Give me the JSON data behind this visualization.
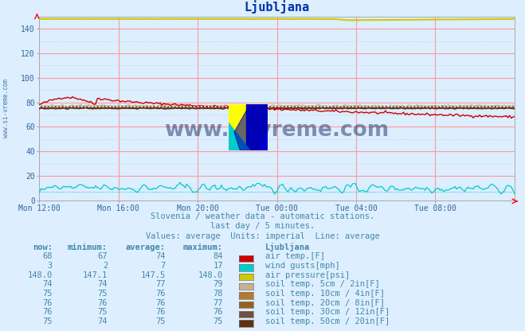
{
  "title": "Ljubljana",
  "subtitle1": "Slovenia / weather data - automatic stations.",
  "subtitle2": "last day / 5 minutes.",
  "subtitle3": "Values: average  Units: imperial  Line: average",
  "bg_color": "#ddeeff",
  "plot_bg_color": "#ddeeff",
  "x_labels": [
    "Mon 12:00",
    "Mon 16:00",
    "Mon 20:00",
    "Tue 00:00",
    "Tue 04:00",
    "Tue 08:00"
  ],
  "x_ticks_norm": [
    0.0,
    0.1667,
    0.3333,
    0.5,
    0.6667,
    0.8333
  ],
  "ylim": [
    0,
    150
  ],
  "yticks": [
    0,
    20,
    40,
    60,
    80,
    100,
    120,
    140
  ],
  "n_points": 288,
  "series_colors": {
    "air_temp": "#cc0000",
    "wind_gusts": "#00cccc",
    "air_pressure": "#cccc00",
    "soil5": "#c8b090",
    "soil10": "#b87830",
    "soil20": "#986020",
    "soil30": "#705040",
    "soil50": "#603010"
  },
  "table_color": "#4488aa",
  "watermark": "www.si-vreme.com",
  "watermark_color": "#1a3060",
  "table_rows": [
    {
      "now": "68",
      "min": "67",
      "avg": "74",
      "max": "84",
      "color": "#cc0000",
      "label": "air temp.[F]"
    },
    {
      "now": "3",
      "min": "2",
      "avg": "7",
      "max": "17",
      "color": "#00cccc",
      "label": "wind gusts[mph]"
    },
    {
      "now": "148.0",
      "min": "147.1",
      "avg": "147.5",
      "max": "148.0",
      "color": "#cccc00",
      "label": "air pressure[psi]"
    },
    {
      "now": "74",
      "min": "74",
      "avg": "77",
      "max": "79",
      "color": "#c8b090",
      "label": "soil temp. 5cm / 2in[F]"
    },
    {
      "now": "75",
      "min": "75",
      "avg": "76",
      "max": "78",
      "color": "#b87830",
      "label": "soil temp. 10cm / 4in[F]"
    },
    {
      "now": "76",
      "min": "76",
      "avg": "76",
      "max": "77",
      "color": "#986020",
      "label": "soil temp. 20cm / 8in[F]"
    },
    {
      "now": "76",
      "min": "75",
      "avg": "76",
      "max": "76",
      "color": "#705040",
      "label": "soil temp. 30cm / 12in[F]"
    },
    {
      "now": "75",
      "min": "74",
      "avg": "75",
      "max": "75",
      "color": "#603010",
      "label": "soil temp. 50cm / 20in[F]"
    }
  ]
}
